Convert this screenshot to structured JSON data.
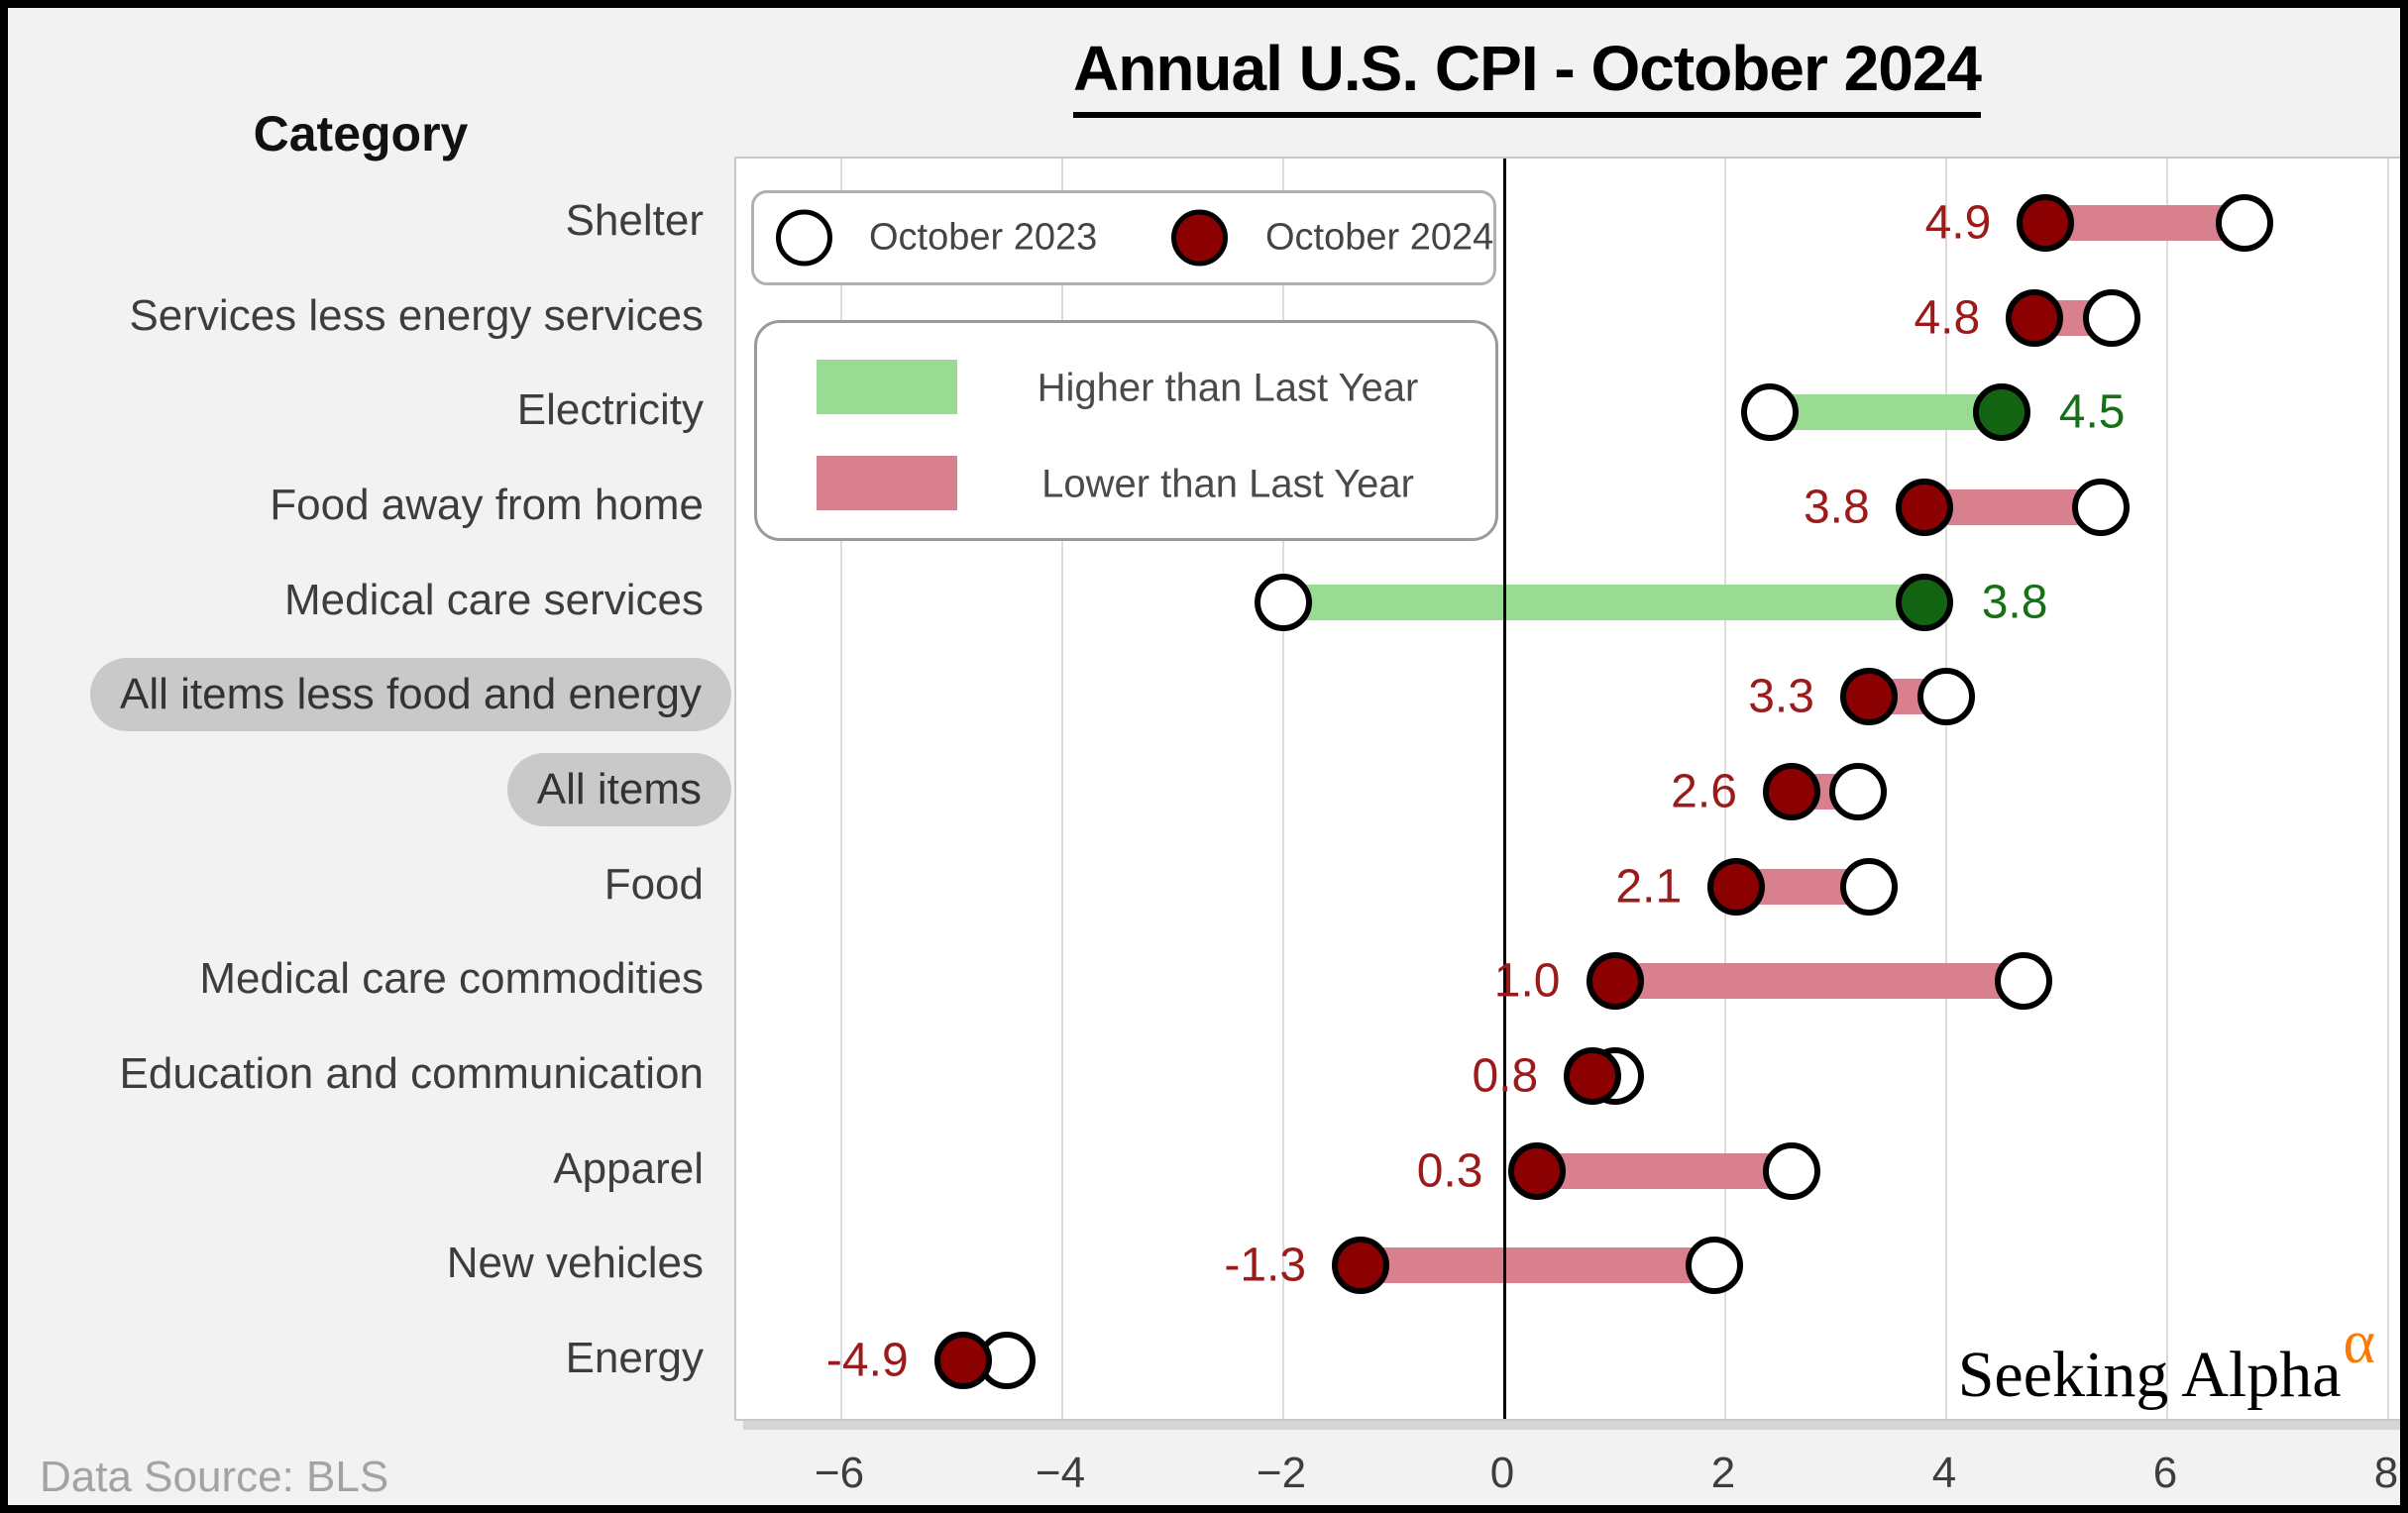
{
  "title": "Annual U.S. CPI - October 2024",
  "category_header": "Category",
  "footer": {
    "data_source": "Data Source: BLS"
  },
  "branding": {
    "name": "Seeking Alpha",
    "alpha_symbol": "α",
    "alpha_color": "#f97b06"
  },
  "legend": {
    "markers": [
      {
        "label": "October 2023",
        "fill": "#ffffff"
      },
      {
        "label": "October 2024",
        "fill": "#8b0000"
      }
    ],
    "bars": [
      {
        "label": "Higher than Last Year",
        "color": "#9adb94"
      },
      {
        "label": "Lower than Last Year",
        "color": "#d8808d"
      }
    ]
  },
  "colors": {
    "marker_2023": "#ffffff",
    "marker_2024_lower": "#8b0000",
    "marker_2024_higher": "#126412",
    "bar_lower": "#d8808d",
    "bar_higher": "#9adb94",
    "text_lower": "#9b1a1a",
    "text_higher": "#167016",
    "highlight_pill": "#c9c9c9"
  },
  "chart_data": {
    "type": "dumbbell",
    "title": "Annual U.S. CPI - October 2024",
    "xlabel": "",
    "ylabel": "Category",
    "series_names": [
      "October 2023",
      "October 2024"
    ],
    "x_axis": {
      "ticks": [
        -6,
        -4,
        -2,
        0,
        2,
        4,
        6,
        8
      ],
      "tick_labels": [
        "−6",
        "−4",
        "−2",
        "0",
        "2",
        "4",
        "6",
        "8"
      ],
      "range": [
        -7,
        8.2
      ],
      "grid": true,
      "zero_line": true
    },
    "rows": [
      {
        "category": "Shelter",
        "oct2023": 6.7,
        "oct2024": 4.9,
        "value_label": "4.9",
        "direction": "lower",
        "highlight": false
      },
      {
        "category": "Services less energy services",
        "oct2023": 5.5,
        "oct2024": 4.8,
        "value_label": "4.8",
        "direction": "lower",
        "highlight": false
      },
      {
        "category": "Electricity",
        "oct2023": 2.4,
        "oct2024": 4.5,
        "value_label": "4.5",
        "direction": "higher",
        "highlight": false
      },
      {
        "category": "Food away from home",
        "oct2023": 5.4,
        "oct2024": 3.8,
        "value_label": "3.8",
        "direction": "lower",
        "highlight": false
      },
      {
        "category": "Medical care services",
        "oct2023": -2.0,
        "oct2024": 3.8,
        "value_label": "3.8",
        "direction": "higher",
        "highlight": false
      },
      {
        "category": "All items less food and energy",
        "oct2023": 4.0,
        "oct2024": 3.3,
        "value_label": "3.3",
        "direction": "lower",
        "highlight": true
      },
      {
        "category": "All items",
        "oct2023": 3.2,
        "oct2024": 2.6,
        "value_label": "2.6",
        "direction": "lower",
        "highlight": true
      },
      {
        "category": "Food",
        "oct2023": 3.3,
        "oct2024": 2.1,
        "value_label": "2.1",
        "direction": "lower",
        "highlight": false
      },
      {
        "category": "Medical care commodities",
        "oct2023": 4.7,
        "oct2024": 1.0,
        "value_label": "1.0",
        "direction": "lower",
        "highlight": false
      },
      {
        "category": "Education and communication",
        "oct2023": 1.0,
        "oct2024": 0.8,
        "value_label": "0.8",
        "direction": "lower",
        "highlight": false
      },
      {
        "category": "Apparel",
        "oct2023": 2.6,
        "oct2024": 0.3,
        "value_label": "0.3",
        "direction": "lower",
        "highlight": false
      },
      {
        "category": "New vehicles",
        "oct2023": 1.9,
        "oct2024": -1.3,
        "value_label": "-1.3",
        "direction": "lower",
        "highlight": false
      },
      {
        "category": "Energy",
        "oct2023": -4.5,
        "oct2024": -4.9,
        "value_label": "-4.9",
        "direction": "lower",
        "highlight": false
      }
    ]
  }
}
